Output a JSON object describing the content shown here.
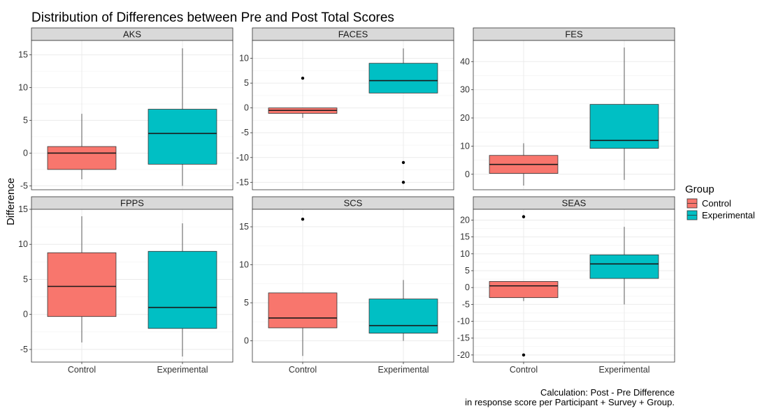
{
  "chart_data": {
    "type": "boxplot",
    "title": "Distribution of Differences between Pre and Post Total Scores",
    "ylabel": "Difference",
    "xlabel": "",
    "categories": [
      "Control",
      "Experimental"
    ],
    "legend": {
      "title": "Group",
      "position": "right",
      "entries": [
        {
          "name": "Control",
          "color": "#F8766D"
        },
        {
          "name": "Experimental",
          "color": "#00BFC4"
        }
      ]
    },
    "caption": [
      "Calculation: Post - Pre Difference",
      "in response score per Participant + Survey + Group."
    ],
    "facets": [
      {
        "name": "AKS",
        "ylim": [
          -5.6,
          17.2
        ],
        "yticks": [
          -5,
          0,
          5,
          10,
          15
        ],
        "ytick_labels": [
          "-5",
          "0",
          "5",
          "10",
          "15"
        ],
        "boxes": [
          {
            "group": "Control",
            "min": -4,
            "q1": -2.5,
            "median": 0,
            "q3": 1,
            "max": 6,
            "outliers": []
          },
          {
            "group": "Experimental",
            "min": -5,
            "q1": -1.7,
            "median": 3,
            "q3": 6.7,
            "max": 16,
            "outliers": []
          }
        ]
      },
      {
        "name": "FACES",
        "ylim": [
          -16.5,
          13.6
        ],
        "yticks": [
          -15,
          -10,
          -5,
          0,
          5,
          10
        ],
        "ytick_labels": [
          "-15",
          "-10",
          "-5",
          "0",
          "5",
          "10"
        ],
        "boxes": [
          {
            "group": "Control",
            "min": -2,
            "q1": -1.1,
            "median": -0.5,
            "q3": 0,
            "max": 0,
            "outliers": [
              6
            ]
          },
          {
            "group": "Experimental",
            "min": 3,
            "q1": 3,
            "median": 5.5,
            "q3": 9,
            "max": 12,
            "outliers": [
              -11,
              -15
            ]
          }
        ]
      },
      {
        "name": "FES",
        "ylim": [
          -5.5,
          47.5
        ],
        "yticks": [
          0,
          10,
          20,
          30,
          40
        ],
        "ytick_labels": [
          "0",
          "10",
          "20",
          "30",
          "40"
        ],
        "boxes": [
          {
            "group": "Control",
            "min": -4,
            "q1": 0.3,
            "median": 3.5,
            "q3": 6.7,
            "max": 11,
            "outliers": []
          },
          {
            "group": "Experimental",
            "min": -2,
            "q1": 9.2,
            "median": 12,
            "q3": 24.8,
            "max": 45,
            "outliers": []
          }
        ]
      },
      {
        "name": "FPPS",
        "ylim": [
          -6.8,
          15.0
        ],
        "yticks": [
          -5,
          0,
          5,
          10,
          15
        ],
        "ytick_labels": [
          "-5",
          "0",
          "5",
          "10",
          "15"
        ],
        "boxes": [
          {
            "group": "Control",
            "min": -4,
            "q1": -0.3,
            "median": 4,
            "q3": 8.8,
            "max": 14,
            "outliers": []
          },
          {
            "group": "Experimental",
            "min": -6,
            "q1": -2,
            "median": 1,
            "q3": 9,
            "max": 13,
            "outliers": []
          }
        ]
      },
      {
        "name": "SCS",
        "ylim": [
          -2.8,
          17.3
        ],
        "yticks": [
          0,
          5,
          10,
          15
        ],
        "ytick_labels": [
          "0",
          "5",
          "10",
          "15"
        ],
        "boxes": [
          {
            "group": "Control",
            "min": -2,
            "q1": 1.7,
            "median": 3,
            "q3": 6.3,
            "max": 6.3,
            "outliers": [
              16
            ]
          },
          {
            "group": "Experimental",
            "min": 0,
            "q1": 1,
            "median": 2,
            "q3": 5.5,
            "max": 8,
            "outliers": []
          }
        ]
      },
      {
        "name": "SEAS",
        "ylim": [
          -22.1,
          23.2
        ],
        "yticks": [
          -20,
          -15,
          -10,
          -5,
          0,
          5,
          10,
          15,
          20
        ],
        "ytick_labels": [
          "-20",
          "-15",
          "-10",
          "-5",
          "0",
          "5",
          "10",
          "15",
          "20"
        ],
        "boxes": [
          {
            "group": "Control",
            "min": -4,
            "q1": -3,
            "median": 0.5,
            "q3": 1.8,
            "max": 1.8,
            "outliers": [
              21,
              -20
            ]
          },
          {
            "group": "Experimental",
            "min": -5,
            "q1": 2.7,
            "median": 7,
            "q3": 9.7,
            "max": 18,
            "outliers": []
          }
        ]
      }
    ]
  }
}
